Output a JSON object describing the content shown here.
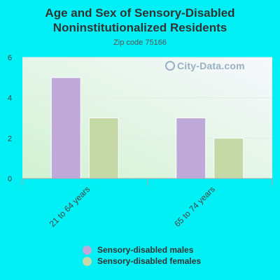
{
  "chart_data": {
    "type": "bar",
    "title": "Age and Sex of Sensory-Disabled Noninstitutionalized Residents",
    "subtitle": "Zip code 75166",
    "categories": [
      "21 to 64 years",
      "65 to 74 years"
    ],
    "series": [
      {
        "name": "Sensory-disabled males",
        "values": [
          5,
          3
        ],
        "color": "#bfa9d9"
      },
      {
        "name": "Sensory-disabled females",
        "values": [
          3,
          2
        ],
        "color": "#c5d9a7"
      }
    ],
    "yticks": [
      0,
      2,
      4,
      6
    ],
    "ylim": [
      0,
      6
    ],
    "grid": true,
    "legend_position": "bottom"
  },
  "watermark": "City-Data.com"
}
